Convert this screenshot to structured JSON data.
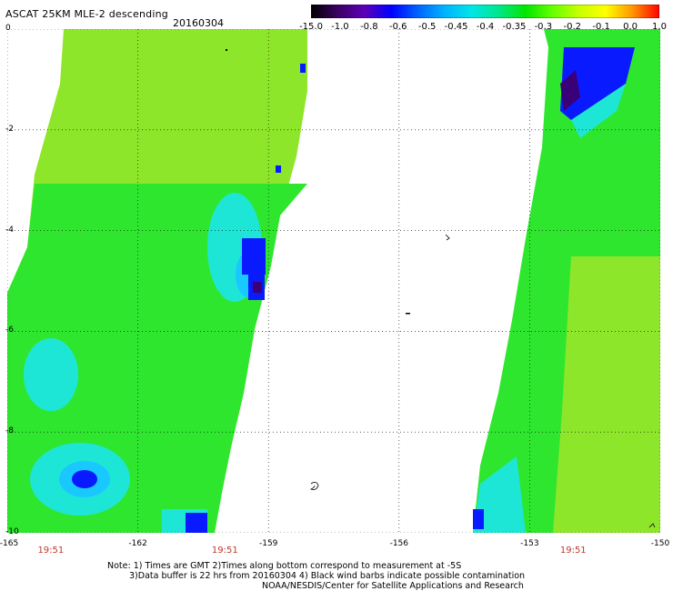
{
  "header": {
    "title": "ASCAT 25KM MLE-2 descending",
    "date": "20160304"
  },
  "colorbar": {
    "labels": [
      "-15.0",
      "-1.0",
      "-0.8",
      "-0.6",
      "-0.5",
      "-0.45",
      "-0.4",
      "-0.35",
      "-0.3",
      "-0.2",
      "-0.1",
      "0.0",
      "1.0"
    ],
    "colors": [
      "#000000",
      "#3b0064",
      "#5c00b8",
      "#0000ff",
      "#0064ff",
      "#00b4ff",
      "#00e6e6",
      "#00e68c",
      "#00e600",
      "#64ff00",
      "#c8ff00",
      "#ffff00",
      "#ff9600",
      "#ff0000"
    ]
  },
  "map": {
    "y_ticks": [
      "0",
      "-2",
      "-4",
      "-6",
      "-8",
      "-10"
    ],
    "y_values": [
      0,
      -2,
      -4,
      -6,
      -8,
      -10
    ],
    "x_ticks": [
      "-165",
      "-162",
      "-159",
      "-156",
      "-153",
      "-150"
    ],
    "x_values": [
      -165,
      -162,
      -159,
      -156,
      -153,
      -150
    ],
    "lon_range": [
      -165,
      -150
    ],
    "lat_range": [
      0,
      -10
    ],
    "time_labels": [
      "19:51",
      "19:51",
      "19:51"
    ],
    "time_lons": [
      -164,
      -160,
      -152
    ],
    "colors": {
      "green": "#2fe62f",
      "lightgreen": "#8ee62a",
      "cyan": "#1ee6d6",
      "lightblue": "#19c8ff",
      "blue": "#0a1aff",
      "purple": "#3a0078",
      "time_label": "#c0392b"
    }
  },
  "notes": {
    "line1": "Note: 1) Times are GMT 2)Times along bottom correspond to measurement at -5S",
    "line2": "3)Data buffer is 22 hrs from 20160304 4) Black wind barbs indicate possible contamination",
    "line3": "NOAA/NESDIS/Center for Satellite Applications and Research"
  }
}
